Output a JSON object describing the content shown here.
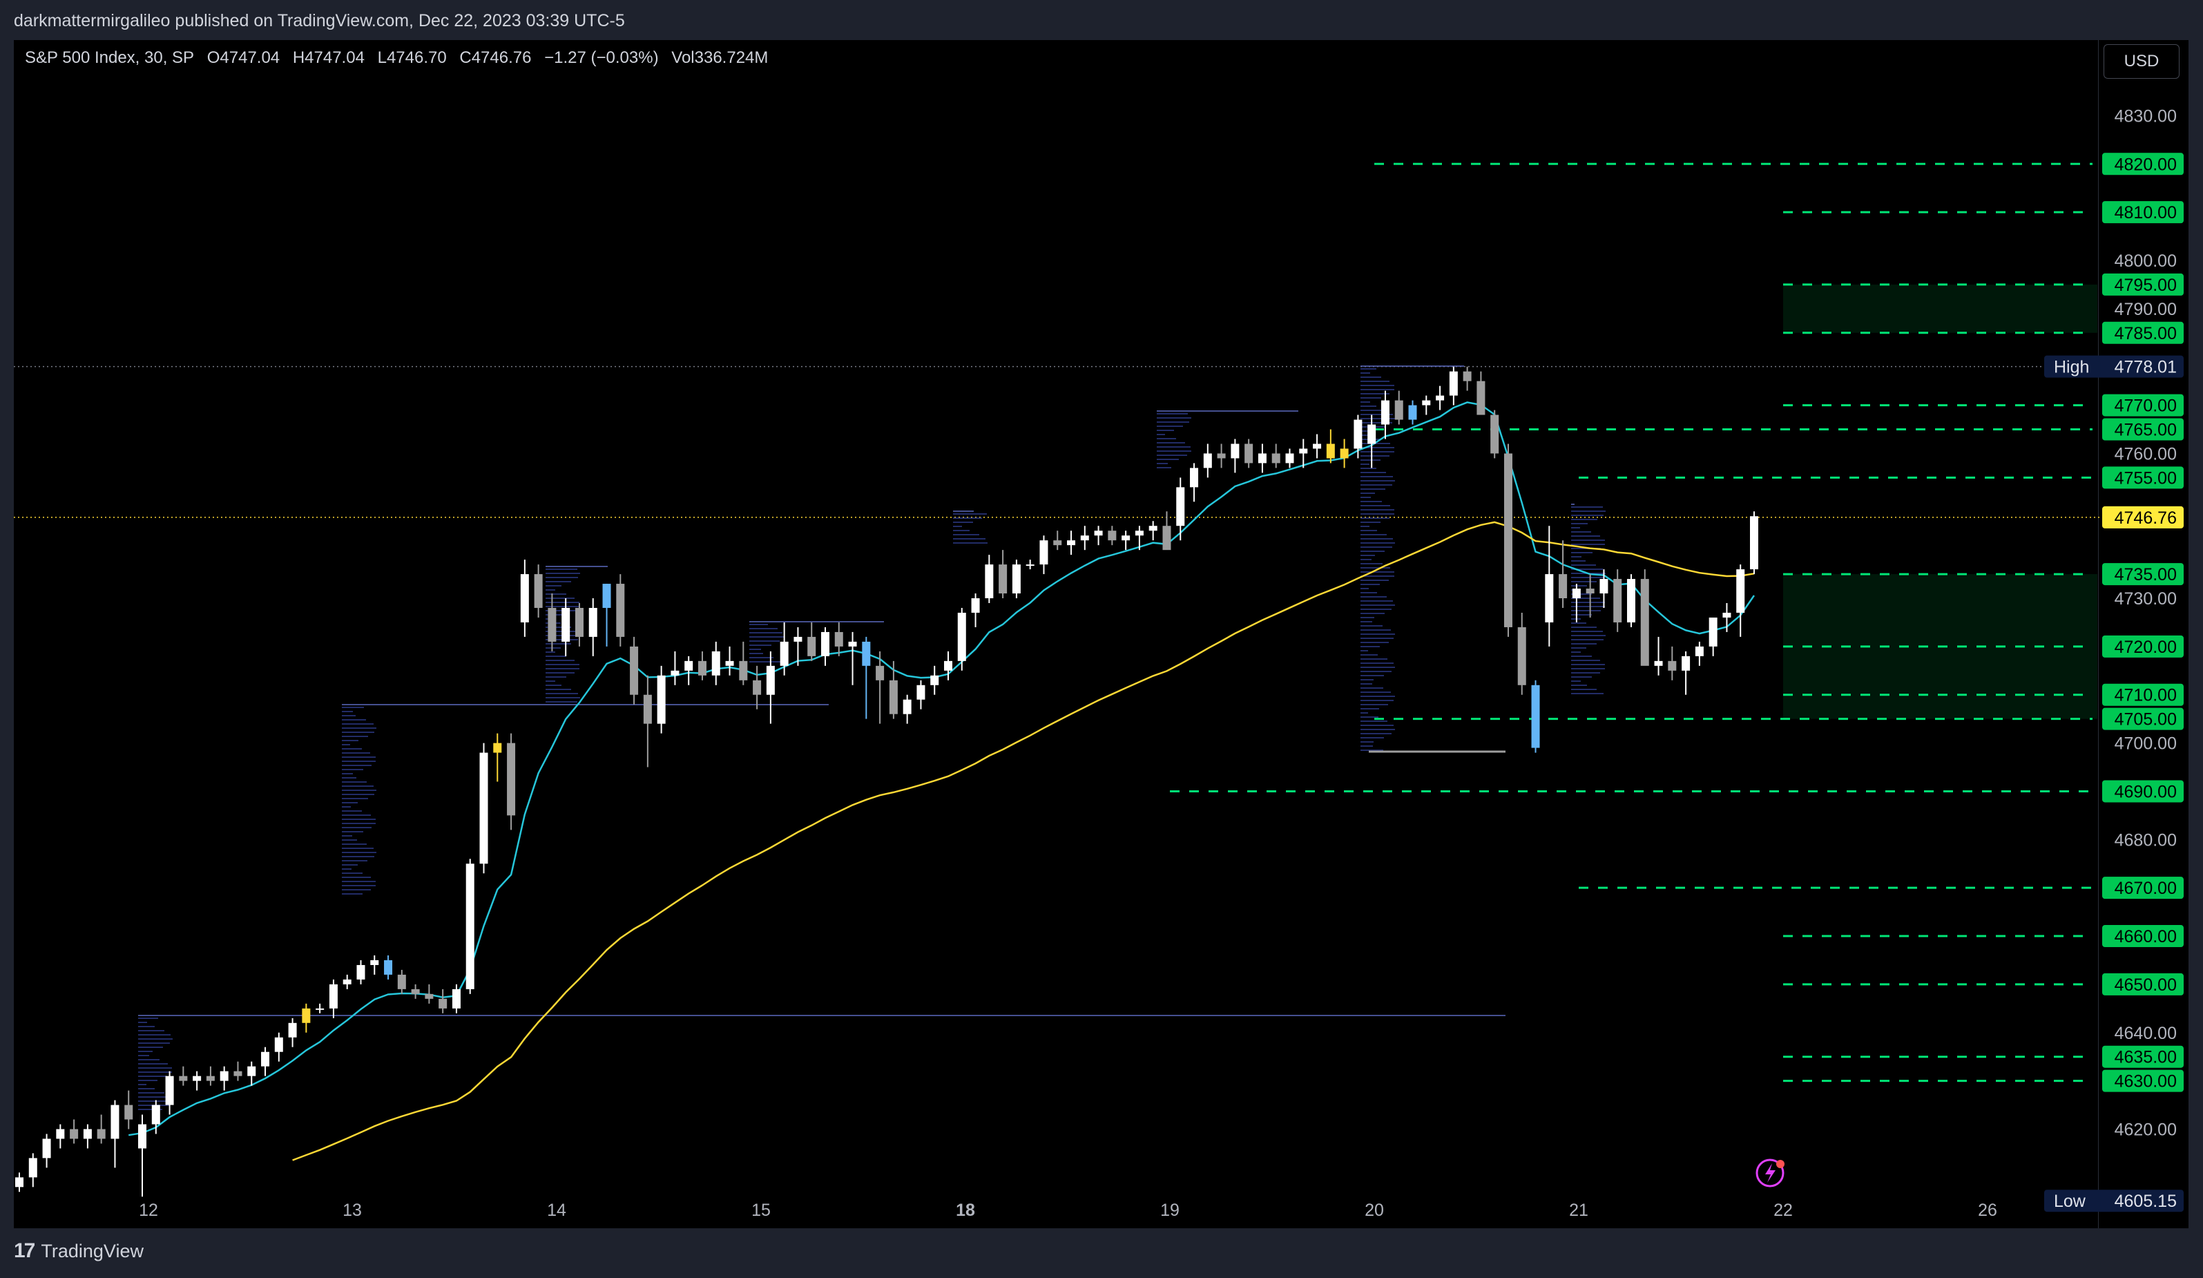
{
  "header": {
    "published_text": "darkmattermirgalileo published on TradingView.com, Dec 22, 2023 03:39 UTC-5"
  },
  "legend": {
    "symbol": "S&P 500 Index, 30, SP",
    "open": "O4747.04",
    "high": "H4747.04",
    "low": "L4746.70",
    "close": "C4746.76",
    "change": "−1.27 (−0.03%)",
    "volume": "Vol336.724M"
  },
  "currency_button": "USD",
  "footer": {
    "brand": "TradingView"
  },
  "colors": {
    "background": "#000000",
    "level_line": "#00e676",
    "level_label_bg": "#00c853",
    "ema_fast": "#26c6da",
    "ema_slow": "#fdd835",
    "current_price_bg": "#ffeb3b",
    "candle_up": "#ffffff",
    "candle_down": "#9e9e9e",
    "candle_blue": "#64b5f6",
    "candle_yellow": "#fdd835"
  },
  "price_axis": {
    "ticks": [
      "4830.00",
      "4800.00",
      "4790.00",
      "4760.00",
      "4730.00",
      "4700.00",
      "4680.00",
      "4640.00",
      "4620.00"
    ],
    "tick_values": [
      4830,
      4800,
      4790,
      4760,
      4730,
      4700,
      4680,
      4640,
      4620
    ]
  },
  "levels": [
    {
      "label": "4820.00",
      "price": 4820,
      "from_day": 20
    },
    {
      "label": "4810.00",
      "price": 4810,
      "from_day": 22
    },
    {
      "label": "4795.00",
      "price": 4795,
      "from_day": 22
    },
    {
      "label": "4785.00",
      "price": 4785,
      "from_day": 22
    },
    {
      "label": "4770.00",
      "price": 4770,
      "from_day": 22
    },
    {
      "label": "4765.00",
      "price": 4765,
      "from_day": 20
    },
    {
      "label": "4755.00",
      "price": 4755,
      "from_day": 21
    },
    {
      "label": "4735.00",
      "price": 4735,
      "from_day": 22
    },
    {
      "label": "4720.00",
      "price": 4720,
      "from_day": 22
    },
    {
      "label": "4710.00",
      "price": 4710,
      "from_day": 22
    },
    {
      "label": "4705.00",
      "price": 4705,
      "from_day": 20
    },
    {
      "label": "4690.00",
      "price": 4690,
      "from_day": 19
    },
    {
      "label": "4670.00",
      "price": 4670,
      "from_day": 21
    },
    {
      "label": "4660.00",
      "price": 4660,
      "from_day": 22
    },
    {
      "label": "4650.00",
      "price": 4650,
      "from_day": 22
    },
    {
      "label": "4635.00",
      "price": 4635,
      "from_day": 22
    },
    {
      "label": "4630.00",
      "price": 4630,
      "from_day": 22
    }
  ],
  "zones": [
    {
      "top": 4795,
      "bottom": 4785
    },
    {
      "top": 4735,
      "bottom": 4705
    }
  ],
  "high_marker": {
    "label": "High",
    "value": "4778.01",
    "price": 4778.01
  },
  "low_marker": {
    "label": "Low",
    "value": "4605.15",
    "price": 4605.15
  },
  "current_price": {
    "label": "4746.76",
    "price": 4746.76
  },
  "time_axis": {
    "labels": [
      {
        "text": "12",
        "bold": false
      },
      {
        "text": "13",
        "bold": false
      },
      {
        "text": "14",
        "bold": false
      },
      {
        "text": "15",
        "bold": false
      },
      {
        "text": "18",
        "bold": true
      },
      {
        "text": "19",
        "bold": false
      },
      {
        "text": "20",
        "bold": false
      },
      {
        "text": "21",
        "bold": false
      },
      {
        "text": "22",
        "bold": false
      },
      {
        "text": "26",
        "bold": false
      }
    ]
  },
  "chart_data": {
    "type": "candlestick",
    "title": "S&P 500 Index, 30, SP",
    "ylim": [
      4602,
      4838
    ],
    "x_categories": [
      "12",
      "13",
      "14",
      "15",
      "18",
      "19",
      "20",
      "21",
      "22",
      "26"
    ],
    "candles": [
      [
        4608,
        4611,
        4607,
        4610
      ],
      [
        4610,
        4615,
        4608,
        4614
      ],
      [
        4614,
        4619,
        4612,
        4618
      ],
      [
        4618,
        4621,
        4616,
        4620
      ],
      [
        4620,
        4622,
        4617,
        4618
      ],
      [
        4618,
        4621,
        4616,
        4620
      ],
      [
        4620,
        4623,
        4617,
        4618
      ],
      [
        4618,
        4626,
        4612,
        4625
      ],
      [
        4625,
        4628,
        4620,
        4622
      ],
      [
        4616,
        4623,
        4606,
        4621
      ],
      [
        4621,
        4626,
        4619,
        4625
      ],
      [
        4625,
        4632,
        4623,
        4631
      ],
      [
        4631,
        4633,
        4629,
        4630
      ],
      [
        4630,
        4632,
        4628,
        4631
      ],
      [
        4631,
        4633,
        4629,
        4630
      ],
      [
        4630,
        4633,
        4628,
        4632
      ],
      [
        4632,
        4634,
        4630,
        4631
      ],
      [
        4631,
        4634,
        4629,
        4633
      ],
      [
        4633,
        4637,
        4631,
        4636
      ],
      [
        4636,
        4640,
        4634,
        4639
      ],
      [
        4639,
        4643,
        4637,
        4642
      ],
      [
        4642,
        4646,
        4640,
        4645
      ],
      [
        4645,
        4646,
        4644,
        4645
      ],
      [
        4645,
        4651,
        4643,
        4650
      ],
      [
        4650,
        4652,
        4649,
        4651
      ],
      [
        4651,
        4655,
        4650,
        4654
      ],
      [
        4654,
        4656,
        4652,
        4655
      ],
      [
        4655,
        4656,
        4651,
        4652
      ],
      [
        4652,
        4653,
        4648,
        4649
      ],
      [
        4649,
        4650,
        4647,
        4648
      ],
      [
        4648,
        4650,
        4646,
        4647
      ],
      [
        4647,
        4649,
        4644,
        4645
      ],
      [
        4645,
        4650,
        4644,
        4649
      ],
      [
        4649,
        4676,
        4648,
        4675
      ],
      [
        4675,
        4700,
        4673,
        4698
      ],
      [
        4698,
        4702,
        4692,
        4700
      ],
      [
        4700,
        4702,
        4682,
        4685
      ],
      [
        4725,
        4738,
        4722,
        4735
      ],
      [
        4735,
        4737,
        4726,
        4728
      ],
      [
        4728,
        4731,
        4719,
        4721
      ],
      [
        4721,
        4730,
        4718,
        4728
      ],
      [
        4728,
        4729,
        4720,
        4722
      ],
      [
        4722,
        4730,
        4718,
        4728
      ],
      [
        4728,
        4733,
        4720,
        4733
      ],
      [
        4733,
        4735,
        4720,
        4722
      ],
      [
        4720,
        4722,
        4708,
        4710
      ],
      [
        4710,
        4714,
        4695,
        4704
      ],
      [
        4704,
        4716,
        4702,
        4714
      ],
      [
        4714,
        4719,
        4712,
        4715
      ],
      [
        4715,
        4718,
        4712,
        4717
      ],
      [
        4717,
        4719,
        4713,
        4714
      ],
      [
        4714,
        4721,
        4712,
        4719
      ],
      [
        4716,
        4720,
        4714,
        4717
      ],
      [
        4717,
        4721,
        4712,
        4713
      ],
      [
        4713,
        4716,
        4707,
        4710
      ],
      [
        4710,
        4719,
        4704,
        4716
      ],
      [
        4716,
        4725,
        4714,
        4721
      ],
      [
        4721,
        4724,
        4716,
        4722
      ],
      [
        4722,
        4725,
        4717,
        4718
      ],
      [
        4718,
        4724,
        4716,
        4723
      ],
      [
        4723,
        4725,
        4718,
        4720
      ],
      [
        4720,
        4723,
        4712,
        4721
      ],
      [
        4721,
        4722,
        4705,
        4716
      ],
      [
        4716,
        4719,
        4704,
        4713
      ],
      [
        4713,
        4717,
        4705,
        4706
      ],
      [
        4706,
        4710,
        4704,
        4709
      ],
      [
        4709,
        4713,
        4707,
        4712
      ],
      [
        4712,
        4716,
        4710,
        4714
      ],
      [
        4715,
        4719,
        4713,
        4717
      ],
      [
        4717,
        4728,
        4715,
        4727
      ],
      [
        4727,
        4731,
        4724,
        4730
      ],
      [
        4730,
        4739,
        4729,
        4737
      ],
      [
        4737,
        4740,
        4730,
        4731
      ],
      [
        4731,
        4738,
        4730,
        4737
      ],
      [
        4737,
        4738,
        4736,
        4737
      ],
      [
        4737,
        4743,
        4735,
        4742
      ],
      [
        4742,
        4744,
        4740,
        4741
      ],
      [
        4741,
        4744,
        4739,
        4742
      ],
      [
        4742,
        4745,
        4740,
        4743
      ],
      [
        4743,
        4745,
        4741,
        4744
      ],
      [
        4744,
        4745,
        4741,
        4742
      ],
      [
        4742,
        4744,
        4740,
        4743
      ],
      [
        4743,
        4745,
        4740,
        4744
      ],
      [
        4744,
        4746,
        4742,
        4745
      ],
      [
        4745,
        4748,
        4742,
        4740
      ],
      [
        4745,
        4755,
        4742,
        4753
      ],
      [
        4753,
        4758,
        4750,
        4757
      ],
      [
        4757,
        4762,
        4755,
        4760
      ],
      [
        4760,
        4762,
        4757,
        4759
      ],
      [
        4759,
        4763,
        4756,
        4762
      ],
      [
        4762,
        4763,
        4757,
        4758
      ],
      [
        4758,
        4762,
        4756,
        4760
      ],
      [
        4760,
        4762,
        4757,
        4758
      ],
      [
        4758,
        4761,
        4757,
        4760
      ],
      [
        4760,
        4763,
        4757,
        4761
      ],
      [
        4761,
        4764,
        4759,
        4762
      ],
      [
        4762,
        4765,
        4758,
        4759
      ],
      [
        4759,
        4763,
        4757,
        4761
      ],
      [
        4761,
        4768,
        4759,
        4767
      ],
      [
        4762,
        4768,
        4757,
        4766
      ],
      [
        4766,
        4773,
        4763,
        4771
      ],
      [
        4771,
        4773,
        4766,
        4767
      ],
      [
        4767,
        4771,
        4766,
        4770
      ],
      [
        4770,
        4772,
        4768,
        4771
      ],
      [
        4771,
        4774,
        4769,
        4772
      ],
      [
        4772,
        4778,
        4770,
        4777
      ],
      [
        4777,
        4778,
        4773,
        4775
      ],
      [
        4775,
        4777,
        4770,
        4768
      ],
      [
        4768,
        4769,
        4759,
        4760
      ],
      [
        4760,
        4762,
        4722,
        4724
      ],
      [
        4724,
        4727,
        4710,
        4712
      ],
      [
        4712,
        4713,
        4698,
        4699
      ],
      [
        4725,
        4745,
        4720,
        4735
      ],
      [
        4735,
        4742,
        4728,
        4730
      ],
      [
        4730,
        4733,
        4725,
        4732
      ],
      [
        4732,
        4735,
        4726,
        4731
      ],
      [
        4731,
        4736,
        4728,
        4734
      ],
      [
        4734,
        4736,
        4723,
        4725
      ],
      [
        4725,
        4735,
        4724,
        4734
      ],
      [
        4734,
        4736,
        4718,
        4716
      ],
      [
        4716,
        4722,
        4714,
        4717
      ],
      [
        4717,
        4720,
        4713,
        4715
      ],
      [
        4715,
        4719,
        4710,
        4718
      ],
      [
        4718,
        4721,
        4716,
        4720
      ],
      [
        4720,
        4725,
        4718,
        4726
      ],
      [
        4726,
        4729,
        4723,
        4727
      ],
      [
        4727,
        4737,
        4722,
        4736
      ],
      [
        4736,
        4748,
        4735,
        4747
      ]
    ]
  }
}
